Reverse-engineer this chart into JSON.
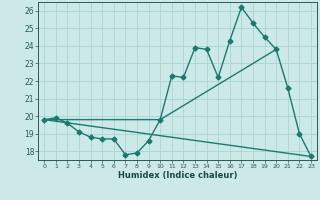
{
  "xlabel": "Humidex (Indice chaleur)",
  "background_color": "#cce9e8",
  "grid_color": "#aad4d3",
  "line_color": "#1a7a6e",
  "xlim": [
    -0.5,
    23.5
  ],
  "ylim": [
    17.5,
    26.5
  ],
  "xticks": [
    0,
    1,
    2,
    3,
    4,
    5,
    6,
    7,
    8,
    9,
    10,
    11,
    12,
    13,
    14,
    15,
    16,
    17,
    18,
    19,
    20,
    21,
    22,
    23
  ],
  "yticks": [
    18,
    19,
    20,
    21,
    22,
    23,
    24,
    25,
    26
  ],
  "curve1_x": [
    0,
    1,
    2,
    3,
    4,
    5,
    6,
    7,
    8,
    9,
    10,
    11,
    12,
    13,
    14,
    15,
    16,
    17,
    18,
    19,
    20,
    21,
    22,
    23
  ],
  "curve1_y": [
    19.8,
    19.9,
    19.6,
    19.1,
    18.8,
    18.7,
    18.7,
    17.8,
    17.9,
    18.6,
    19.8,
    22.3,
    22.2,
    23.9,
    23.8,
    22.2,
    24.3,
    26.2,
    25.3,
    24.5,
    23.8,
    21.6,
    19.0,
    17.7
  ],
  "curve2_x": [
    0,
    10,
    20
  ],
  "curve2_y": [
    19.8,
    19.8,
    23.8
  ],
  "curve3_x": [
    0,
    23
  ],
  "curve3_y": [
    19.8,
    17.7
  ],
  "marker_size": 2.5,
  "linewidth": 1.0
}
